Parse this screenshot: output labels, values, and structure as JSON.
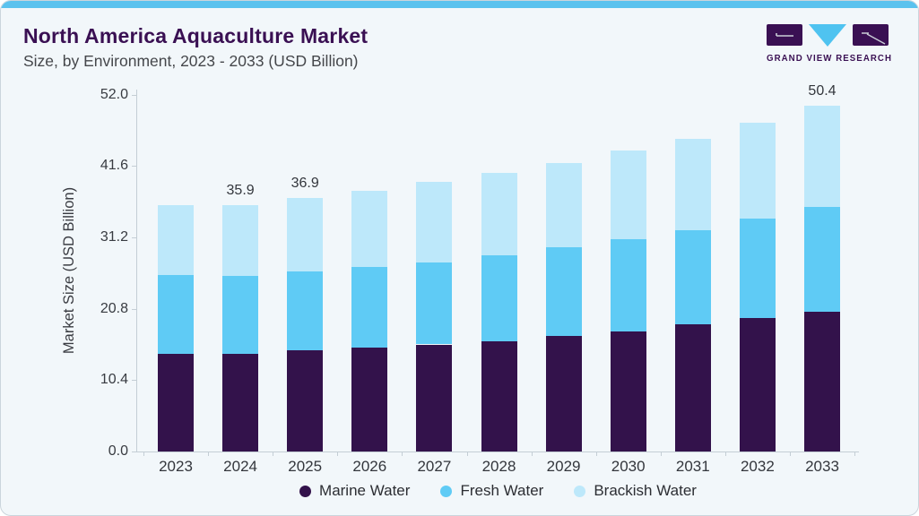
{
  "header": {
    "title": "North America Aquaculture Market",
    "subtitle": "Size, by Environment, 2023 - 2033 (USD Billion)",
    "logo_text": "GRAND VIEW RESEARCH",
    "logo_colors": {
      "purple": "#3A1053",
      "blue": "#4FC3F0"
    }
  },
  "theme": {
    "card_background": "#F2F7FA",
    "top_strip": "#5BC2EE",
    "axis_color": "#C4CED5",
    "title_color": "#3A1053"
  },
  "chart_data": {
    "type": "bar",
    "stacked": true,
    "title": "North America Aquaculture Market Size, by Environment, 2023 - 2033 (USD Billion)",
    "xlabel": "",
    "ylabel": "Market Size (USD Billion)",
    "ylim": [
      0,
      52
    ],
    "yticks": [
      0.0,
      10.4,
      20.8,
      31.2,
      41.6,
      52.0
    ],
    "grid": false,
    "legend_position": "bottom",
    "categories": [
      "2023",
      "2024",
      "2025",
      "2026",
      "2027",
      "2028",
      "2029",
      "2030",
      "2031",
      "2032",
      "2033"
    ],
    "series": [
      {
        "name": "Marine Water",
        "color": "#33124B",
        "values": [
          14.2,
          14.2,
          14.7,
          15.1,
          15.6,
          16.1,
          16.9,
          17.5,
          18.6,
          19.4,
          20.4
        ]
      },
      {
        "name": "Fresh Water",
        "color": "#5FCBF5",
        "values": [
          11.5,
          11.4,
          11.6,
          11.8,
          11.9,
          12.5,
          12.9,
          13.4,
          13.7,
          14.5,
          15.2
        ]
      },
      {
        "name": "Brackish Water",
        "color": "#BDE8FA",
        "values": [
          10.2,
          10.3,
          10.6,
          11.1,
          11.8,
          12.0,
          12.2,
          12.9,
          13.3,
          14.0,
          14.8
        ]
      }
    ],
    "totals": [
      35.9,
      35.9,
      36.9,
      38.0,
      39.3,
      40.6,
      42.0,
      43.8,
      45.6,
      47.9,
      50.4
    ],
    "bar_value_labels": [
      "",
      "35.9",
      "36.9",
      "",
      "",
      "",
      "",
      "",
      "",
      "",
      "50.4"
    ]
  }
}
